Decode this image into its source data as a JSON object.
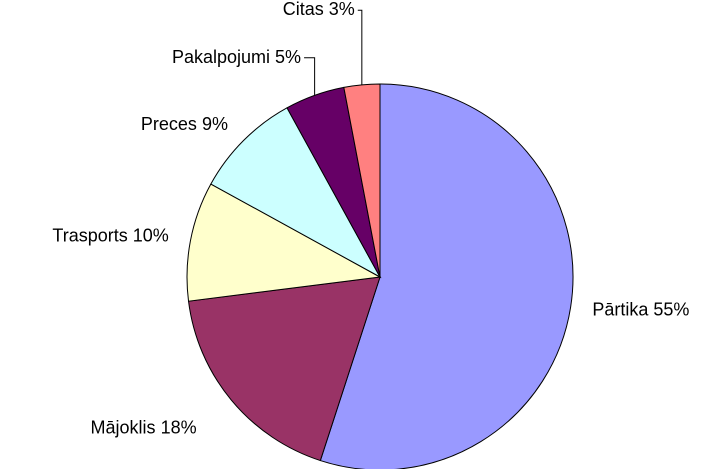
{
  "chart_data": {
    "type": "pie",
    "categories": [
      "Pārtika",
      "Mājoklis",
      "Trasports",
      "Preces",
      "Pakalpojumi",
      "Citas"
    ],
    "values": [
      55,
      18,
      10,
      9,
      5,
      3
    ],
    "value_labels": [
      "55%",
      "18%",
      "10%",
      "9%",
      "5%",
      "3%"
    ],
    "colors": [
      "#9999ff",
      "#993366",
      "#ffffcc",
      "#ccffff",
      "#660066",
      "#ff8080"
    ]
  }
}
